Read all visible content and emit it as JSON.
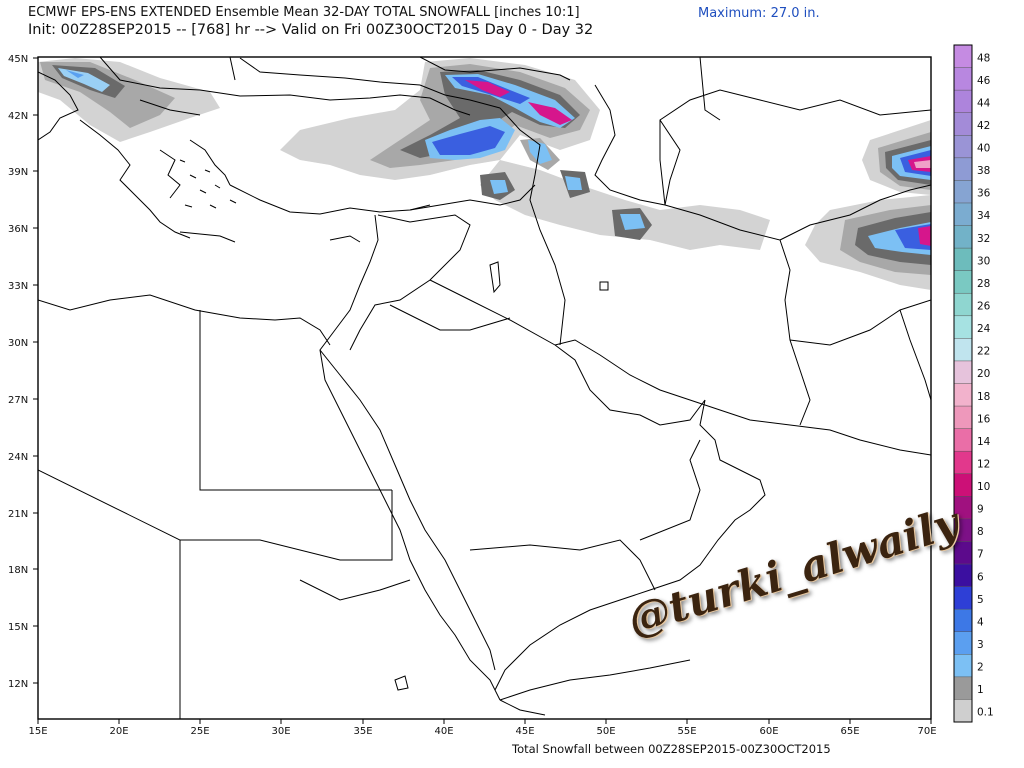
{
  "header": {
    "title": "ECMWF EPS-ENS EXTENDED Ensemble Mean 32-DAY TOTAL SNOWFALL [inches 10:1]",
    "maximum": "Maximum:  27.0 in.",
    "init_line": "Init: 00Z28SEP2015 -- [768] hr --> Valid on Fri 00Z30OCT2015  Day 0 - Day 32"
  },
  "footer": "Total Snowfall between 00Z28SEP2015-00Z30OCT2015",
  "watermark": "@turki_alwaily",
  "axes": {
    "lat_labels": [
      "45N",
      "42N",
      "39N",
      "36N",
      "33N",
      "30N",
      "27N",
      "24N",
      "21N",
      "18N",
      "15N",
      "12N"
    ],
    "lon_labels": [
      "15E",
      "20E",
      "25E",
      "30E",
      "35E",
      "40E",
      "45E",
      "50E",
      "55E",
      "60E",
      "65E",
      "70E"
    ]
  },
  "colorbar": {
    "labels": [
      "48",
      "46",
      "44",
      "42",
      "40",
      "38",
      "36",
      "34",
      "32",
      "30",
      "28",
      "26",
      "24",
      "22",
      "20",
      "18",
      "16",
      "14",
      "12",
      "10",
      "9",
      "8",
      "7",
      "6",
      "5",
      "4",
      "3",
      "2",
      "1",
      "0.1"
    ],
    "colors": [
      "#c58be2",
      "#b887e0",
      "#ad84dc",
      "#a38bd8",
      "#9a94d6",
      "#8e9bd4",
      "#86a4d2",
      "#7bacd0",
      "#72b2c8",
      "#6dbcbc",
      "#7ac9c2",
      "#8fd6d0",
      "#a6e2e2",
      "#c0e4ee",
      "#e6c3dc",
      "#f2b2cc",
      "#ee98bb",
      "#ea6ea7",
      "#e2388c",
      "#cc1077",
      "#a0117f",
      "#7d1187",
      "#5c0a8c",
      "#3b0fa0",
      "#2e3fd6",
      "#3d78e6",
      "#5b9ff0",
      "#7cc0f4",
      "#9a9a9a",
      "#cfcfcf"
    ],
    "legend_colors": {
      "light": "#d3d3d3",
      "mid": "#a8a8a8",
      "dark": "#6a6a6a",
      "darkest": "#4a4a4a",
      "blue1": "#9ad0f5",
      "blue2": "#5aa0f0",
      "blue3": "#3a5fe0",
      "purple": "#8a2ab0",
      "magenta": "#d6168c",
      "pink": "#f0a0c8"
    }
  }
}
